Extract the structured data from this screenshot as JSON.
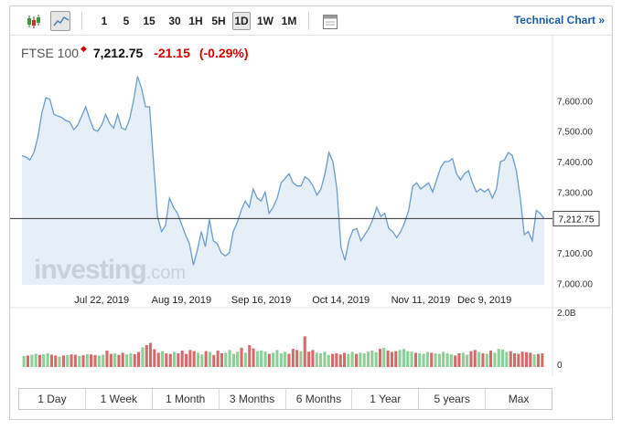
{
  "toolbar": {
    "intervals": [
      "1",
      "5",
      "15",
      "30",
      "1H",
      "5H",
      "1D",
      "1W",
      "1M"
    ],
    "active_interval": "1D",
    "technical_chart": "Technical Chart »"
  },
  "quote": {
    "name": "FTSE 100",
    "price": "7,212.75",
    "change": "-21.15",
    "change_pct": "(-0.29%)"
  },
  "watermark": {
    "brand": "investing",
    "suffix": ".com"
  },
  "ranges": [
    "1 Day",
    "1 Week",
    "1 Month",
    "3 Months",
    "6 Months",
    "1 Year",
    "5 years",
    "Max"
  ],
  "colors": {
    "area_line": "#6a9ccf",
    "area_fill": "#dce8f4",
    "up_volume": "#8ccf97",
    "down_volume": "#d36b6b",
    "negative": "#d40000",
    "link": "#1f5aa6"
  },
  "chart_data": {
    "type": "area",
    "y_ticks": [
      "7,600.00",
      "7,500.00",
      "7,400.00",
      "7,300.00",
      "7,212.75",
      "7,100.00",
      "7,000.00"
    ],
    "y_tick_values": [
      7600,
      7500,
      7400,
      7300,
      7100,
      7000
    ],
    "ylim": [
      6995,
      7700
    ],
    "x_ticks": [
      "Jul 22, 2019",
      "Aug 19, 2019",
      "Sep 16, 2019",
      "Oct 14, 2019",
      "Nov 11, 2019",
      "Dec 9, 2019"
    ],
    "x_tick_index": [
      20,
      40,
      60,
      80,
      100,
      116
    ],
    "last_price": 7212.75,
    "last_price_label": "7,212.75",
    "values": [
      7420,
      7415,
      7405,
      7430,
      7480,
      7560,
      7610,
      7605,
      7555,
      7550,
      7545,
      7535,
      7530,
      7505,
      7520,
      7550,
      7580,
      7540,
      7505,
      7500,
      7520,
      7555,
      7525,
      7510,
      7555,
      7510,
      7505,
      7540,
      7600,
      7680,
      7640,
      7580,
      7580,
      7400,
      7220,
      7170,
      7190,
      7280,
      7250,
      7230,
      7195,
      7160,
      7130,
      7060,
      7110,
      7170,
      7120,
      7210,
      7140,
      7130,
      7100,
      7090,
      7100,
      7170,
      7200,
      7240,
      7270,
      7250,
      7310,
      7280,
      7270,
      7300,
      7230,
      7250,
      7280,
      7330,
      7345,
      7360,
      7330,
      7320,
      7320,
      7350,
      7340,
      7320,
      7290,
      7310,
      7360,
      7430,
      7400,
      7310,
      7120,
      7075,
      7140,
      7175,
      7180,
      7140,
      7160,
      7180,
      7210,
      7250,
      7220,
      7230,
      7180,
      7170,
      7150,
      7170,
      7200,
      7240,
      7320,
      7330,
      7310,
      7320,
      7330,
      7300,
      7340,
      7380,
      7400,
      7400,
      7410,
      7360,
      7340,
      7360,
      7370,
      7330,
      7300,
      7310,
      7300,
      7310,
      7280,
      7310,
      7400,
      7405,
      7430,
      7420,
      7370,
      7280,
      7160,
      7170,
      7140,
      7240,
      7230,
      7212
    ],
    "volume_ticks": [
      "2.0B",
      "0"
    ],
    "volume_max": 2.0,
    "volumes": [
      0.4,
      0.42,
      0.45,
      0.48,
      0.44,
      0.46,
      0.5,
      0.45,
      0.42,
      0.38,
      0.42,
      0.44,
      0.46,
      0.45,
      0.4,
      0.43,
      0.47,
      0.46,
      0.44,
      0.42,
      0.45,
      0.6,
      0.48,
      0.5,
      0.44,
      0.52,
      0.46,
      0.5,
      0.47,
      0.55,
      0.72,
      0.8,
      0.88,
      0.65,
      0.52,
      0.58,
      0.5,
      0.48,
      0.55,
      0.5,
      0.6,
      0.48,
      0.62,
      0.58,
      0.52,
      0.46,
      0.58,
      0.55,
      0.44,
      0.6,
      0.5,
      0.52,
      0.62,
      0.48,
      0.56,
      0.7,
      0.52,
      0.8,
      0.68,
      0.58,
      0.6,
      0.56,
      0.48,
      0.52,
      0.62,
      0.5,
      0.55,
      0.48,
      0.66,
      0.62,
      0.58,
      1.12,
      0.56,
      0.62,
      0.52,
      0.5,
      0.55,
      0.44,
      0.48,
      0.5,
      0.46,
      0.52,
      0.48,
      0.55,
      0.48,
      0.52,
      0.5,
      0.56,
      0.6,
      0.54,
      0.66,
      0.7,
      0.6,
      0.55,
      0.58,
      0.62,
      0.66,
      0.58,
      0.56,
      0.52,
      0.5,
      0.48,
      0.55,
      0.52,
      0.5,
      0.48,
      0.55,
      0.5,
      0.46,
      0.42,
      0.5,
      0.52,
      0.45,
      0.58,
      0.62,
      0.55,
      0.5,
      0.48,
      0.6,
      0.52,
      0.66,
      0.64,
      0.55,
      0.58,
      0.5,
      0.48,
      0.56,
      0.54,
      0.52,
      0.46,
      0.48,
      0.5
    ],
    "volume_up": [
      1,
      0,
      1,
      1,
      0,
      1,
      1,
      0,
      0,
      1,
      0,
      1,
      0,
      0,
      1,
      0,
      1,
      0,
      0,
      1,
      1,
      0,
      0,
      1,
      0,
      0,
      1,
      1,
      0,
      0,
      1,
      0,
      0,
      0,
      0,
      1,
      0,
      0,
      1,
      0,
      0,
      0,
      0,
      0,
      1,
      1,
      0,
      1,
      0,
      0,
      0,
      1,
      1,
      1,
      1,
      0,
      1,
      0,
      0,
      1,
      1,
      1,
      0,
      1,
      1,
      1,
      1,
      0,
      0,
      0,
      1,
      0,
      0,
      0,
      1,
      1,
      1,
      1,
      0,
      0,
      0,
      0,
      1,
      1,
      0,
      1,
      1,
      1,
      1,
      1,
      0,
      1,
      0,
      0,
      0,
      1,
      1,
      1,
      1,
      0,
      1,
      1,
      1,
      0,
      1,
      1,
      1,
      1,
      1,
      0,
      0,
      1,
      1,
      0,
      0,
      1,
      0,
      1,
      0,
      1,
      1,
      1,
      1,
      0,
      0,
      0,
      0,
      0,
      0,
      1,
      0,
      0
    ]
  }
}
